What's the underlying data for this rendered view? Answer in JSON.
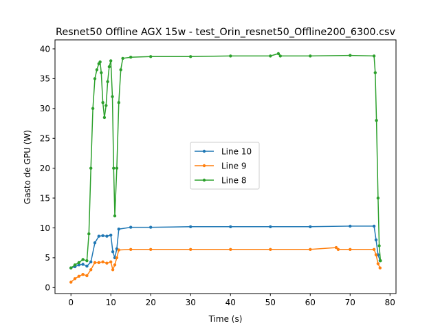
{
  "chart_data": {
    "type": "line",
    "title": "Resnet50 Offline AGX 15w - test_Orin_resnet50_Offline200_6300.csv",
    "xlabel": "Time (s)",
    "ylabel": "Gasto de GPU (W)",
    "xlim": [
      -4,
      81.5
    ],
    "ylim": [
      -1.0,
      41.5
    ],
    "xticks": [
      0,
      10,
      20,
      30,
      40,
      50,
      60,
      70,
      80
    ],
    "yticks": [
      0,
      5,
      10,
      15,
      20,
      25,
      30,
      35,
      40
    ],
    "grid": false,
    "legend_position": "center",
    "series": [
      {
        "name": "Line 10",
        "color": "#1f77b4",
        "x": [
          0,
          1,
          2,
          3,
          4,
          5,
          6,
          7,
          8,
          9,
          10,
          10.5,
          11,
          11.5,
          12,
          15,
          20,
          30,
          40,
          50,
          60,
          70,
          76,
          76.5,
          77,
          77.5
        ],
        "y": [
          3.3,
          3.5,
          3.8,
          3.9,
          3.6,
          4.3,
          7.5,
          8.6,
          8.7,
          8.6,
          8.8,
          6.0,
          5.0,
          6.5,
          9.8,
          10.1,
          10.1,
          10.2,
          10.2,
          10.2,
          10.2,
          10.3,
          10.3,
          8.0,
          5.5,
          4.5
        ]
      },
      {
        "name": "Line 9",
        "color": "#ff7f0e",
        "x": [
          0,
          1,
          2,
          3,
          4,
          5,
          6,
          7,
          8,
          9,
          10,
          10.5,
          11,
          11.5,
          12,
          15,
          20,
          30,
          40,
          50,
          60,
          66.5,
          67,
          70,
          76,
          76.5,
          77,
          77.5
        ],
        "y": [
          0.9,
          1.5,
          1.9,
          2.2,
          2.0,
          3.0,
          4.2,
          4.2,
          4.3,
          4.1,
          4.3,
          3.0,
          3.8,
          5.0,
          6.3,
          6.4,
          6.4,
          6.4,
          6.4,
          6.4,
          6.4,
          6.7,
          6.4,
          6.4,
          6.4,
          5.5,
          4.0,
          3.3
        ]
      },
      {
        "name": "Line 8",
        "color": "#2ca02c",
        "x": [
          0,
          1,
          2,
          3,
          4,
          4.5,
          5,
          5.5,
          6,
          6.5,
          7,
          7.3,
          7.6,
          8,
          8.4,
          8.8,
          9.2,
          9.6,
          10,
          10.4,
          10.7,
          11,
          11.5,
          12,
          12.5,
          13,
          15,
          20,
          30,
          40,
          50,
          52,
          52.5,
          60,
          70,
          76,
          76.3,
          76.6,
          77,
          77.3,
          77.6
        ],
        "y": [
          3.3,
          3.8,
          4.2,
          4.7,
          4.5,
          9.0,
          20.0,
          30.0,
          35.0,
          36.5,
          37.5,
          37.8,
          36.0,
          31.0,
          28.5,
          30.5,
          34.5,
          37.0,
          38.0,
          32.0,
          20.0,
          12.0,
          20.0,
          31.0,
          36.5,
          38.4,
          38.6,
          38.7,
          38.7,
          38.8,
          38.8,
          39.2,
          38.8,
          38.8,
          38.9,
          38.8,
          36.0,
          28.0,
          15.0,
          7.0,
          4.5
        ]
      }
    ]
  }
}
